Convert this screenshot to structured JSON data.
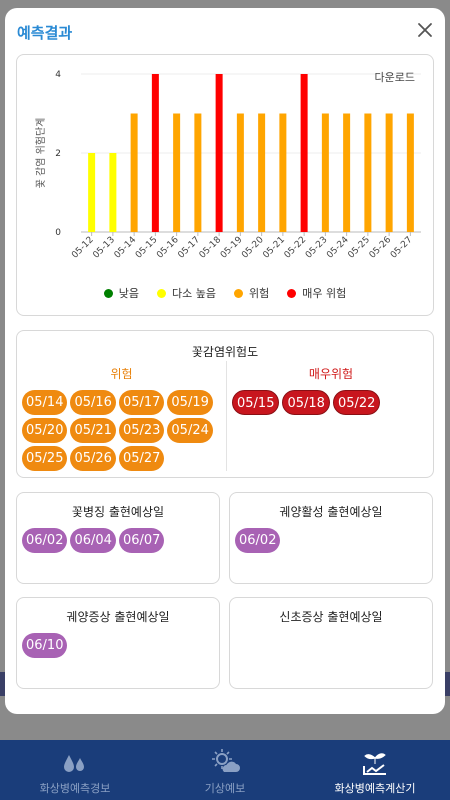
{
  "modal": {
    "title": "예측결과",
    "close_icon": "close-icon"
  },
  "chart": {
    "download_label": "다운로드"
  },
  "chart_data": {
    "type": "bar",
    "ylabel": "꽃 감염 위험단계",
    "ylim": [
      0,
      4
    ],
    "yticks": [
      0,
      2,
      4
    ],
    "categories": [
      "05-12",
      "05-13",
      "05-14",
      "05-15",
      "05-16",
      "05-17",
      "05-18",
      "05-19",
      "05-20",
      "05-21",
      "05-22",
      "05-23",
      "05-24",
      "05-25",
      "05-26",
      "05-27"
    ],
    "values": [
      2,
      2,
      3,
      4,
      3,
      3,
      4,
      3,
      3,
      3,
      4,
      3,
      3,
      3,
      3,
      3
    ],
    "colors": [
      "#ffff00",
      "#ffff00",
      "#ffa500",
      "#ff0000",
      "#ffa500",
      "#ffa500",
      "#ff0000",
      "#ffa500",
      "#ffa500",
      "#ffa500",
      "#ff0000",
      "#ffa500",
      "#ffa500",
      "#ffa500",
      "#ffa500",
      "#ffa500"
    ],
    "legend": [
      {
        "label": "낮음",
        "color": "#008000"
      },
      {
        "label": "다소 높음",
        "color": "#ffff00"
      },
      {
        "label": "위험",
        "color": "#ffa500"
      },
      {
        "label": "매우 위험",
        "color": "#ff0000"
      }
    ],
    "legend_position": "bottom",
    "grid": true
  },
  "risk": {
    "title": "꽃감염위험도",
    "danger_title": "위험",
    "danger_dates": [
      "05/14",
      "05/16",
      "05/17",
      "05/19",
      "05/20",
      "05/21",
      "05/23",
      "05/24",
      "05/25",
      "05/26",
      "05/27"
    ],
    "severe_title": "매우위험",
    "severe_dates": [
      "05/15",
      "05/18",
      "05/22"
    ]
  },
  "cards": [
    {
      "title": "꽃병징 출현예상일",
      "dates": [
        "06/02",
        "06/04",
        "06/07"
      ]
    },
    {
      "title": "궤양활성 출현예상일",
      "dates": [
        "06/02"
      ]
    },
    {
      "title": "궤양증상 출현예상일",
      "dates": [
        "06/10"
      ]
    },
    {
      "title": "신초증상 출현예상일",
      "dates": []
    }
  ],
  "colors": {
    "accent": "#2a8ad4",
    "danger": "#ef8a10",
    "severe": "#c8161e",
    "date_pill": "#a862b4",
    "nav_bg": "#1a3d7a"
  },
  "nav": [
    {
      "label": "화상병예측경보",
      "icon": "drops-icon",
      "active": false
    },
    {
      "label": "기상예보",
      "icon": "sun-cloud-icon",
      "active": false
    },
    {
      "label": "화상병예측계산기",
      "icon": "plant-chart-icon",
      "active": true
    }
  ]
}
